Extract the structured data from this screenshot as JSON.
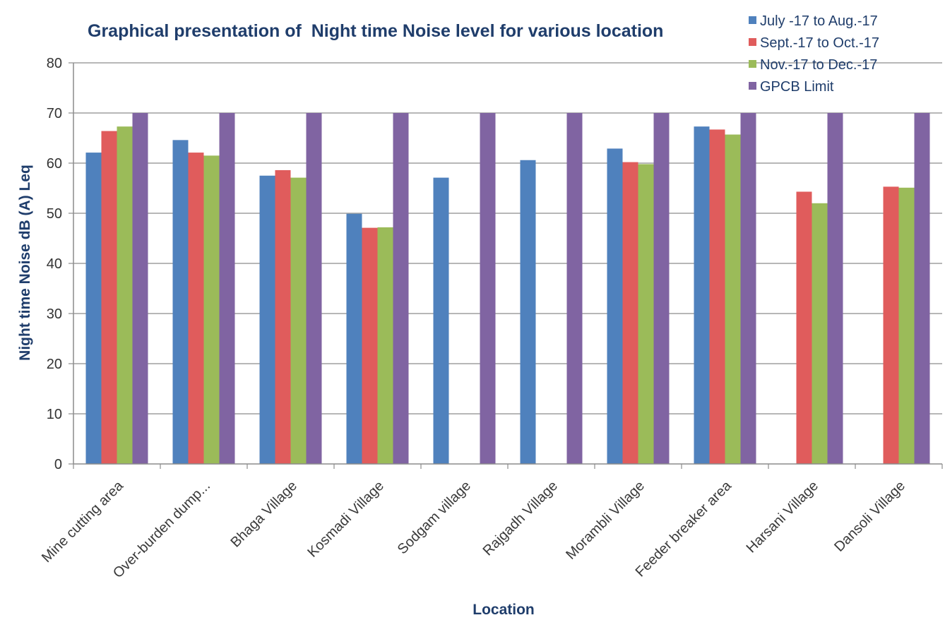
{
  "chart_data": {
    "type": "bar",
    "title": "Graphical presentation of  Night time Noise level for various location",
    "xlabel": "Location",
    "ylabel": "Night time Noise dB (A) Leq",
    "ylim": [
      0,
      80
    ],
    "yticks": [
      0,
      10,
      20,
      30,
      40,
      50,
      60,
      70,
      80
    ],
    "grid": true,
    "legend_position": "top-right",
    "categories": [
      "Mine cutting area",
      "Over-burden dump...",
      "Bhaga Village",
      "Kosmadi Village",
      "Sodgam village",
      "Rajgadh Village",
      "Morambli Village",
      "Feeder breaker area",
      "Harsani Village",
      "Dansoli Village"
    ],
    "series": [
      {
        "name": "July -17 to Aug.-17",
        "color": "#4f81bd",
        "values": [
          62.1,
          64.6,
          57.5,
          49.9,
          57.1,
          60.6,
          62.9,
          67.3,
          null,
          null
        ]
      },
      {
        "name": "Sept.-17 to Oct.-17",
        "color": "#e05c5c",
        "values": [
          66.4,
          62.1,
          58.6,
          47.1,
          null,
          null,
          60.2,
          66.7,
          54.3,
          55.3
        ]
      },
      {
        "name": "Nov.-17 to Dec.-17",
        "color": "#9bbb59",
        "values": [
          67.3,
          61.5,
          57.1,
          47.2,
          null,
          null,
          59.8,
          65.7,
          52.0,
          55.1
        ]
      },
      {
        "name": "GPCB Limit",
        "color": "#8064a2",
        "values": [
          70,
          70,
          70,
          70,
          70,
          70,
          70,
          70,
          70,
          70
        ]
      }
    ]
  }
}
